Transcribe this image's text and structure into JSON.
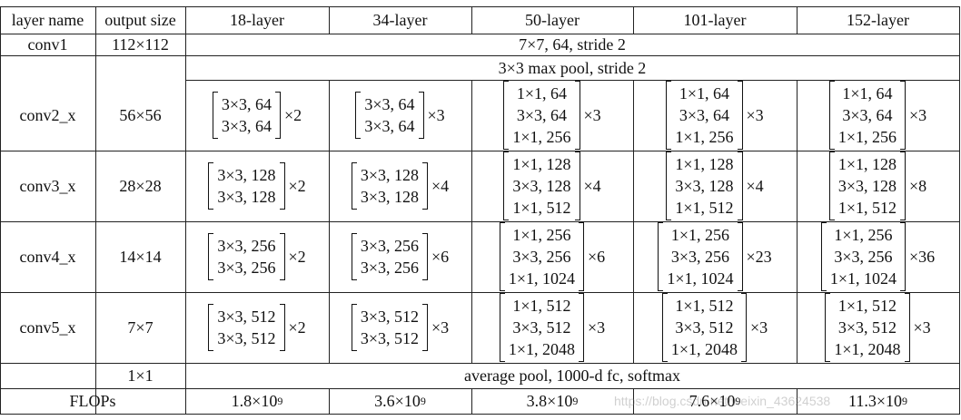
{
  "headers": [
    "layer name",
    "output size",
    "18-layer",
    "34-layer",
    "50-layer",
    "101-layer",
    "152-layer"
  ],
  "conv1": {
    "name": "conv1",
    "size": "112×112",
    "spec": "7×7, 64, stride 2"
  },
  "pool": {
    "spec": "3×3 max pool, stride 2"
  },
  "stages": [
    {
      "name": "conv2_x",
      "size": "56×56",
      "blocks": [
        {
          "lines": [
            "3×3, 64",
            "3×3, 64"
          ],
          "mult": "×2"
        },
        {
          "lines": [
            "3×3, 64",
            "3×3, 64"
          ],
          "mult": "×3"
        },
        {
          "lines": [
            "1×1, 64",
            "3×3, 64",
            "1×1, 256"
          ],
          "mult": "×3"
        },
        {
          "lines": [
            "1×1, 64",
            "3×3, 64",
            "1×1, 256"
          ],
          "mult": "×3"
        },
        {
          "lines": [
            "1×1, 64",
            "3×3, 64",
            "1×1, 256"
          ],
          "mult": "×3"
        }
      ]
    },
    {
      "name": "conv3_x",
      "size": "28×28",
      "blocks": [
        {
          "lines": [
            "3×3, 128",
            "3×3, 128"
          ],
          "mult": "×2"
        },
        {
          "lines": [
            "3×3, 128",
            "3×3, 128"
          ],
          "mult": "×4"
        },
        {
          "lines": [
            "1×1, 128",
            "3×3, 128",
            "1×1, 512"
          ],
          "mult": "×4"
        },
        {
          "lines": [
            "1×1, 128",
            "3×3, 128",
            "1×1, 512"
          ],
          "mult": "×4"
        },
        {
          "lines": [
            "1×1, 128",
            "3×3, 128",
            "1×1, 512"
          ],
          "mult": "×8"
        }
      ]
    },
    {
      "name": "conv4_x",
      "size": "14×14",
      "blocks": [
        {
          "lines": [
            "3×3, 256",
            "3×3, 256"
          ],
          "mult": "×2"
        },
        {
          "lines": [
            "3×3, 256",
            "3×3, 256"
          ],
          "mult": "×6"
        },
        {
          "lines": [
            "1×1, 256",
            "3×3, 256",
            "1×1, 1024"
          ],
          "mult": "×6"
        },
        {
          "lines": [
            "1×1, 256",
            "3×3, 256",
            "1×1, 1024"
          ],
          "mult": "×23"
        },
        {
          "lines": [
            "1×1, 256",
            "3×3, 256",
            "1×1, 1024"
          ],
          "mult": "×36"
        }
      ]
    },
    {
      "name": "conv5_x",
      "size": "7×7",
      "blocks": [
        {
          "lines": [
            "3×3, 512",
            "3×3, 512"
          ],
          "mult": "×2"
        },
        {
          "lines": [
            "3×3, 512",
            "3×3, 512"
          ],
          "mult": "×3"
        },
        {
          "lines": [
            "1×1, 512",
            "3×3, 512",
            "1×1, 2048"
          ],
          "mult": "×3"
        },
        {
          "lines": [
            "1×1, 512",
            "3×3, 512",
            "1×1, 2048"
          ],
          "mult": "×3"
        },
        {
          "lines": [
            "1×1, 512",
            "3×3, 512",
            "1×1, 2048"
          ],
          "mult": "×3"
        }
      ]
    }
  ],
  "final": {
    "size": "1×1",
    "spec": "average pool, 1000-d fc, softmax"
  },
  "flops": {
    "label": "FLOPs",
    "base": [
      "1.8×10",
      "3.6×10",
      "3.8×10",
      "7.6×10",
      "11.3×10"
    ],
    "exp": [
      "9",
      "9",
      "9",
      "9",
      "9"
    ]
  },
  "watermark": "https://blog.csdn.net/weixin_43624538"
}
